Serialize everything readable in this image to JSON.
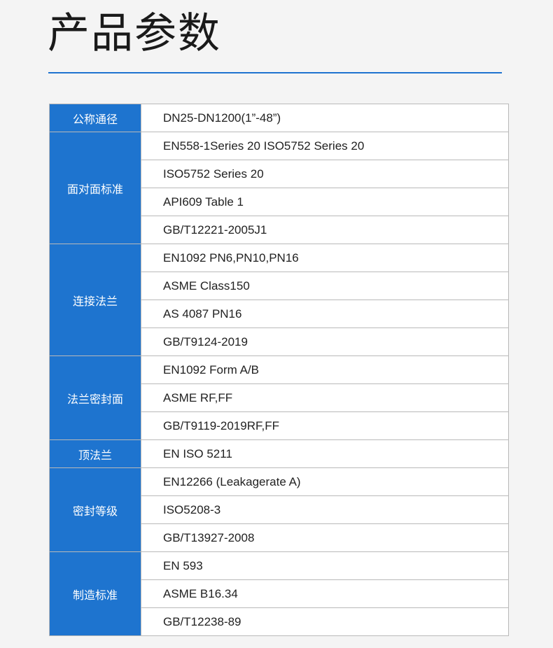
{
  "title": "产品参数",
  "colors": {
    "accent": "#1e74cf",
    "background": "#f4f4f4"
  },
  "groups": [
    {
      "label": "公称通径",
      "values": [
        "DN25-DN1200(1”-48”)"
      ]
    },
    {
      "label": "面对面标准",
      "values": [
        "EN558-1Series 20 ISO5752 Series 20",
        "ISO5752 Series 20",
        "API609 Table 1",
        "GB/T12221-2005J1"
      ]
    },
    {
      "label": "连接法兰",
      "values": [
        "EN1092 PN6,PN10,PN16",
        "ASME Class150",
        "AS 4087 PN16",
        "GB/T9124-2019"
      ]
    },
    {
      "label": "法兰密封面",
      "values": [
        "EN1092 Form A/B",
        "ASME RF,FF",
        "GB/T9119-2019RF,FF"
      ]
    },
    {
      "label": "顶法兰",
      "values": [
        "EN ISO 5211"
      ]
    },
    {
      "label": "密封等级",
      "values": [
        "EN12266 (Leakagerate A)",
        "ISO5208-3",
        "GB/T13927-2008"
      ]
    },
    {
      "label": "制造标准",
      "values": [
        "EN 593",
        "ASME B16.34",
        "GB/T12238-89"
      ]
    }
  ]
}
